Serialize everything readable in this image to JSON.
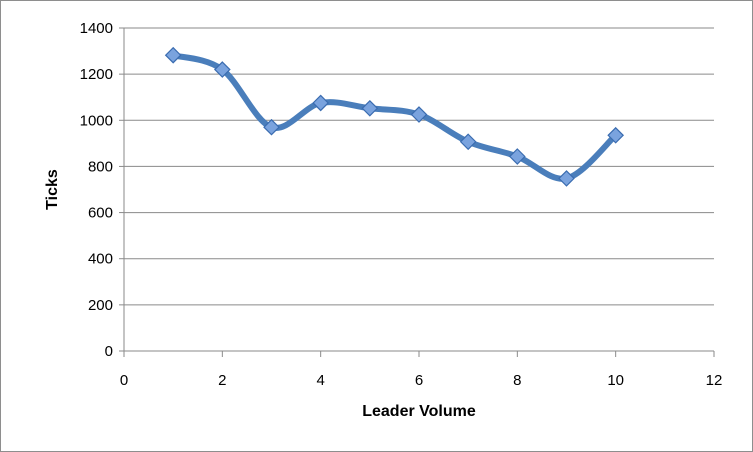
{
  "chart_data": {
    "type": "line",
    "title": "",
    "xlabel": "Leader Volume",
    "ylabel": "Ticks",
    "xlim": [
      0,
      12
    ],
    "ylim": [
      0,
      1400
    ],
    "x_ticks": [
      0,
      2,
      4,
      6,
      8,
      10,
      12
    ],
    "y_ticks": [
      0,
      200,
      400,
      600,
      800,
      1000,
      1200,
      1400
    ],
    "grid": "horizontal",
    "legend": "none",
    "smoothed": true,
    "marker": "diamond",
    "series_color": "#4a7ebb",
    "marker_fill": "#7aa3de",
    "series": [
      {
        "x": [
          1,
          2,
          3,
          4,
          5,
          6,
          7,
          8,
          9,
          10
        ],
        "values": [
          1282,
          1220,
          970,
          1075,
          1052,
          1025,
          907,
          843,
          748,
          935
        ]
      }
    ]
  }
}
